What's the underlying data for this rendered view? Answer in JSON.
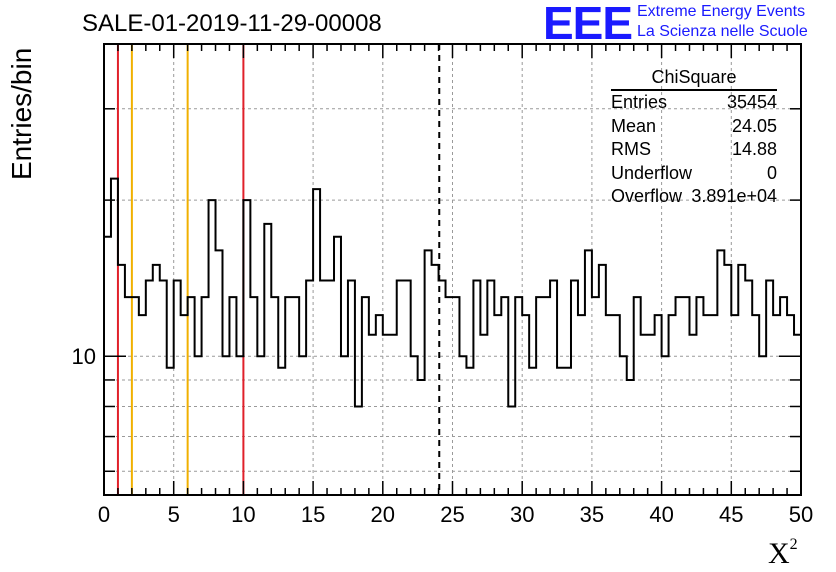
{
  "header": {
    "run_title": "SALE-01-2019-11-29-00008",
    "logo_mark": "EEE",
    "logo_line1": "Extreme Energy Events",
    "logo_line2": "La Scienza nelle Scuole"
  },
  "stats_box": {
    "title": "ChiSquare",
    "rows": [
      {
        "label": "Entries",
        "value": "35454"
      },
      {
        "label": "Mean",
        "value": "24.05"
      },
      {
        "label": "RMS",
        "value": "14.88"
      },
      {
        "label": "Underflow",
        "value": "0"
      },
      {
        "label": "Overflow",
        "value": "3.891e+04"
      }
    ]
  },
  "chart_data": {
    "type": "histogram",
    "title": "SALE-01-2019-11-29-00008",
    "xlabel": "X",
    "xlabel_superscript": "2",
    "ylabel": "Entries/bin",
    "xlim": [
      0,
      50
    ],
    "ylim": [
      5.4,
      40
    ],
    "yscale": "log",
    "grid": true,
    "bin_width": 0.5,
    "x_ticks": [
      0,
      5,
      10,
      15,
      20,
      25,
      30,
      35,
      40,
      45,
      50
    ],
    "x_tick_labels": [
      "0",
      "5",
      "10",
      "15",
      "20",
      "25",
      "30",
      "35",
      "40",
      "45",
      "50"
    ],
    "y_tick_labels": [
      {
        "value": 10,
        "label": "10"
      }
    ],
    "values": [
      17,
      22,
      15,
      13,
      13,
      12,
      14,
      15,
      14,
      9.5,
      14,
      12,
      13,
      10,
      13,
      20,
      16,
      10,
      13,
      10,
      20,
      13,
      10,
      18,
      13,
      9.5,
      13,
      13,
      10,
      14,
      21,
      14,
      14,
      17,
      10,
      14,
      8,
      13,
      11,
      12,
      11,
      11,
      14,
      14,
      10,
      9,
      16,
      15,
      14,
      13,
      13,
      10,
      9.5,
      14,
      11,
      14,
      12,
      13,
      8,
      13,
      12,
      9.5,
      13,
      13,
      14,
      9.5,
      9.5,
      14,
      12,
      16,
      13,
      15,
      12,
      12,
      10,
      9,
      13,
      11,
      11,
      12,
      10,
      12,
      13,
      13,
      11,
      13,
      12,
      12,
      16,
      15,
      12,
      15,
      14,
      12,
      10,
      14,
      12,
      13,
      12,
      11
    ],
    "vertical_lines": [
      {
        "x": 1,
        "color": "#e0202a",
        "style": "solid"
      },
      {
        "x": 2,
        "color": "#f0b000",
        "style": "solid"
      },
      {
        "x": 6,
        "color": "#f0b000",
        "style": "solid"
      },
      {
        "x": 10,
        "color": "#e0202a",
        "style": "solid"
      },
      {
        "x": 24.05,
        "color": "#000000",
        "style": "dashed"
      }
    ],
    "stats": {
      "entries": 35454,
      "mean": 24.05,
      "rms": 14.88,
      "underflow": 0,
      "overflow": "3.891e+04"
    }
  }
}
